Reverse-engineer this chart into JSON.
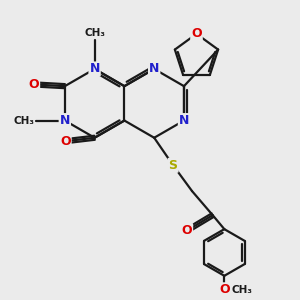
{
  "bg_color": "#ebebeb",
  "bond_color": "#1a1a1a",
  "n_color": "#2020cc",
  "o_color": "#dd0000",
  "s_color": "#aaaa00",
  "line_width": 1.6,
  "font_size": 9.0,
  "fig_w": 3.0,
  "fig_h": 3.0,
  "dpi": 100,
  "xlim": [
    0,
    10
  ],
  "ylim": [
    0,
    10
  ]
}
